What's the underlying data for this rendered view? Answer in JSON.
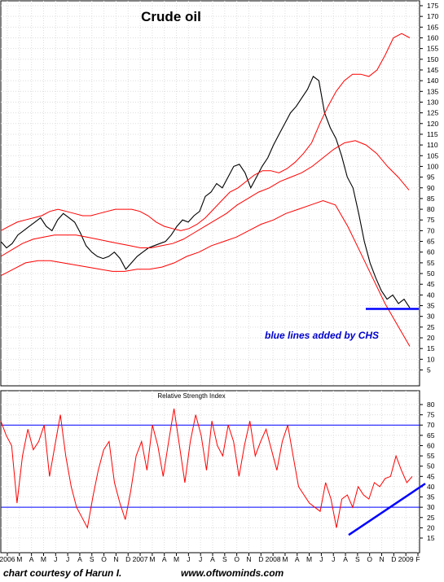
{
  "chart_data": [
    {
      "type": "line",
      "title": "Crude oil",
      "annotation": "blue lines added by CHS",
      "ylim": [
        5,
        175
      ],
      "y_ticks": [
        5,
        10,
        15,
        20,
        25,
        30,
        35,
        40,
        45,
        50,
        55,
        60,
        65,
        70,
        75,
        80,
        85,
        90,
        95,
        100,
        105,
        110,
        115,
        120,
        125,
        130,
        135,
        140,
        145,
        150,
        155,
        160,
        165,
        170,
        175
      ],
      "x_tick_labels": [
        "2006",
        "M",
        "A",
        "M",
        "J",
        "J",
        "A",
        "S",
        "O",
        "N",
        "D",
        "2007",
        "M",
        "A",
        "M",
        "J",
        "J",
        "A",
        "S",
        "O",
        "N",
        "D",
        "2008",
        "M",
        "A",
        "M",
        "J",
        "J",
        "A",
        "S",
        "O",
        "N",
        "D",
        "2009",
        "F"
      ],
      "grid": true,
      "series": [
        {
          "role": "price",
          "color": "#000000",
          "values": [
            65,
            62,
            64,
            68,
            70,
            72,
            74,
            76,
            72,
            70,
            75,
            78,
            76,
            74,
            69,
            63,
            60,
            58,
            57,
            58,
            60,
            57,
            52,
            55,
            58,
            60,
            62,
            63,
            64,
            65,
            68,
            72,
            75,
            74,
            77,
            79,
            86,
            88,
            92,
            90,
            95,
            100,
            101,
            97,
            90,
            95,
            100,
            104,
            110,
            115,
            120,
            125,
            128,
            132,
            136,
            142,
            140,
            125,
            118,
            113,
            105,
            95,
            90,
            78,
            65,
            55,
            48,
            42,
            38,
            40,
            36,
            38,
            34
          ]
        },
        {
          "role": "bollinger-upper",
          "color": "#ff0000",
          "values": [
            70,
            72,
            74,
            75,
            76,
            77,
            79,
            80,
            79,
            78,
            77,
            77,
            78,
            79,
            80,
            80,
            80,
            79,
            77,
            74,
            72,
            71,
            70,
            71,
            73,
            76,
            80,
            84,
            88,
            90,
            93,
            96,
            98,
            98,
            97,
            99,
            102,
            106,
            111,
            120,
            128,
            135,
            140,
            143,
            143,
            142,
            145,
            152,
            160,
            162,
            160
          ]
        },
        {
          "role": "bollinger-middle",
          "color": "#ff0000",
          "values": [
            58,
            61,
            64,
            66,
            67,
            68,
            68,
            68,
            67,
            66,
            65,
            64,
            63,
            62,
            62,
            63,
            64,
            66,
            69,
            72,
            75,
            78,
            82,
            85,
            88,
            90,
            93,
            95,
            97,
            100,
            104,
            108,
            111,
            112,
            110,
            106,
            100,
            95,
            89
          ]
        },
        {
          "role": "bollinger-lower",
          "color": "#ff0000",
          "values": [
            49,
            52,
            55,
            56,
            56,
            55,
            54,
            53,
            52,
            51,
            51,
            52,
            52,
            53,
            55,
            58,
            60,
            63,
            65,
            67,
            70,
            73,
            75,
            78,
            80,
            82,
            84,
            82,
            72,
            60,
            48,
            36,
            26,
            16
          ]
        }
      ],
      "horizontal_lines": [
        {
          "role": "support",
          "color": "#0000ff",
          "y_value": 33.5
        }
      ]
    },
    {
      "type": "line",
      "title": "Relative Strength Index",
      "ylim": [
        15,
        80
      ],
      "y_ticks": [
        15,
        20,
        25,
        30,
        35,
        40,
        45,
        50,
        55,
        60,
        65,
        70,
        75,
        80
      ],
      "reference_lines": [
        70,
        30
      ],
      "x_tick_labels": [
        "2006",
        "M",
        "A",
        "M",
        "J",
        "J",
        "A",
        "S",
        "O",
        "N",
        "D",
        "2007",
        "M",
        "A",
        "M",
        "J",
        "J",
        "A",
        "S",
        "O",
        "N",
        "D",
        "2008",
        "M",
        "A",
        "M",
        "J",
        "J",
        "A",
        "S",
        "O",
        "N",
        "D",
        "2009",
        "F"
      ],
      "series": [
        {
          "role": "rsi",
          "color": "#ff0000",
          "values": [
            72,
            65,
            60,
            32,
            55,
            68,
            58,
            62,
            70,
            45,
            60,
            75,
            55,
            40,
            30,
            25,
            20,
            35,
            48,
            58,
            62,
            42,
            32,
            24,
            38,
            55,
            62,
            48,
            70,
            60,
            45,
            62,
            78,
            60,
            42,
            62,
            75,
            65,
            48,
            72,
            60,
            55,
            70,
            62,
            45,
            60,
            72,
            55,
            62,
            68,
            58,
            48,
            62,
            70,
            55,
            40,
            36,
            32,
            30,
            28,
            42,
            34,
            20,
            34,
            36,
            30,
            40,
            36,
            34,
            42,
            40,
            44,
            45,
            55,
            48,
            42,
            45
          ]
        },
        {
          "role": "trendline",
          "color": "#0000ff",
          "from": [
            16.5,
            38.5
          ],
          "to": [
            16.5,
            41.5
          ]
        }
      ]
    }
  ],
  "footer": {
    "credit": "chart courtesy of Harun I.",
    "website": "www.oftwominds.com"
  }
}
